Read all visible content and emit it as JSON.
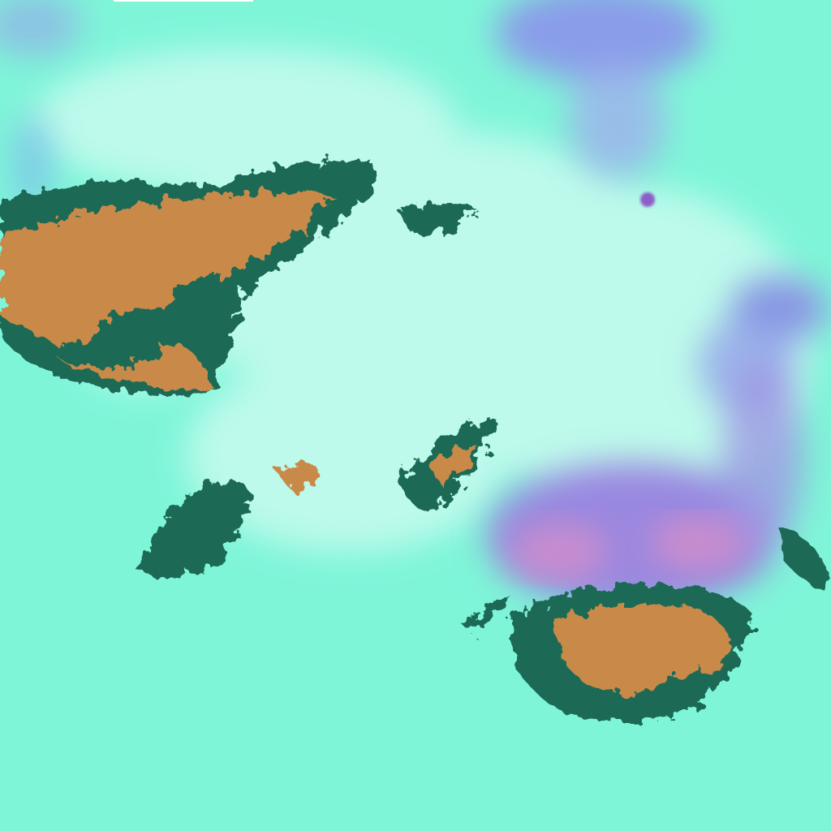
{
  "image": {
    "kind": "false-color satellite imagery",
    "colors": {
      "background": "#7ff5d8",
      "cloud_bright": "#c8fbef",
      "cloud_blue": "#8fa6ee",
      "cloud_violet": "#9a88e0",
      "cloud_pink": "#d98fc8",
      "convective_core": "#c98a4a",
      "core_edge": "#1d6a55"
    }
  }
}
